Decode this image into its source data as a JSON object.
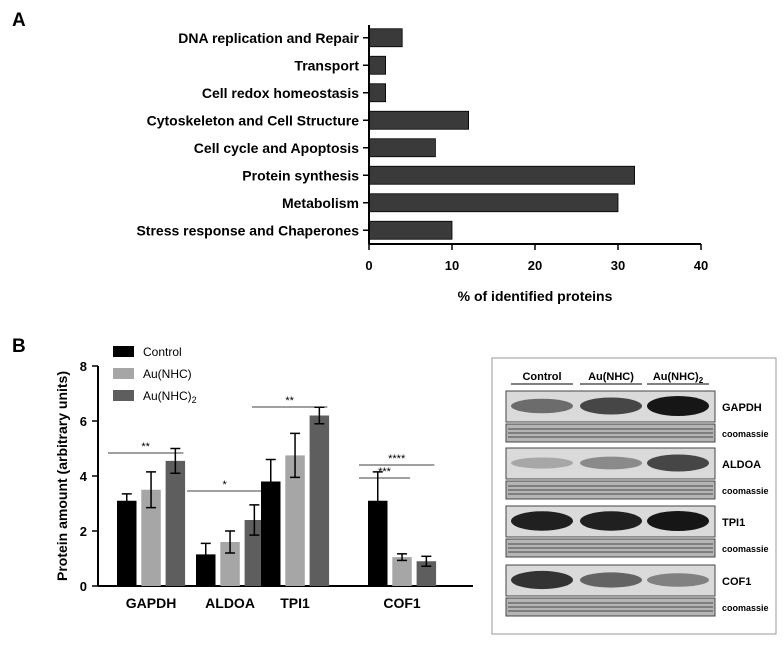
{
  "panels": {
    "a_letter": "A",
    "b_letter": "B"
  },
  "chart_data": [
    {
      "type": "bar",
      "orientation": "horizontal",
      "categories": [
        "DNA replication and Repair",
        "Transport",
        "Cell redox homeostasis",
        "Cytoskeleton and Cell Structure",
        "Cell cycle and Apoptosis",
        "Protein synthesis",
        "Metabolism",
        "Stress response and Chaperones"
      ],
      "values": [
        4,
        2,
        2,
        12,
        8,
        32,
        30,
        10
      ],
      "xlabel": "% of identified proteins",
      "xlim": [
        0,
        40
      ],
      "xticks": [
        "0",
        "10",
        "20",
        "30",
        "40"
      ],
      "bar_color": "#3a3a3a",
      "grid": false
    },
    {
      "type": "bar",
      "categories": [
        "GAPDH",
        "ALDOA",
        "TPI1",
        "COF1"
      ],
      "series": [
        {
          "name": "Control",
          "values": [
            3.1,
            1.15,
            3.8,
            3.1
          ],
          "errors": [
            0.25,
            0.4,
            0.8,
            1.05
          ],
          "color": "#000000"
        },
        {
          "name": "Au(NHC)",
          "values": [
            3.5,
            1.6,
            4.75,
            1.05
          ],
          "errors": [
            0.65,
            0.4,
            0.8,
            0.12
          ],
          "color": "#a6a6a6"
        },
        {
          "name": "Au(NHC)2",
          "values": [
            4.55,
            2.4,
            6.2,
            0.9
          ],
          "errors": [
            0.45,
            0.55,
            0.3,
            0.18
          ],
          "color": "#5e5e5e"
        }
      ],
      "ylabel": "Protein amount (arbitrary units)",
      "ylim": [
        0,
        8
      ],
      "yticks": [
        "0",
        "2",
        "4",
        "6",
        "8"
      ],
      "legend": "top-left",
      "grid": false,
      "annotations": [
        {
          "label": "**",
          "category": "GAPDH",
          "from_series": 0,
          "to_series": 2
        },
        {
          "label": "*",
          "category": "ALDOA",
          "from_series": 0,
          "to_series": 2
        },
        {
          "label": "**",
          "category": "TPI1",
          "from_series": 0,
          "to_series": 2
        },
        {
          "label": "****",
          "category": "COF1",
          "from_series": 0,
          "to_series": 2
        },
        {
          "label": "***",
          "category": "COF1",
          "from_series": 0,
          "to_series": 1
        }
      ]
    }
  ],
  "blot": {
    "lanes": [
      "Control",
      "Au(NHC)",
      "Au(NHC)"
    ],
    "lane_subscript": "2",
    "loading_label": "coomassie",
    "proteins": [
      {
        "name": "GAPDH",
        "intensities": [
          0.55,
          0.75,
          1.0
        ]
      },
      {
        "name": "ALDOA",
        "intensities": [
          0.25,
          0.4,
          0.75
        ]
      },
      {
        "name": "TPI1",
        "intensities": [
          0.95,
          0.95,
          1.0
        ]
      },
      {
        "name": "COF1",
        "intensities": [
          0.85,
          0.6,
          0.45
        ]
      }
    ]
  }
}
